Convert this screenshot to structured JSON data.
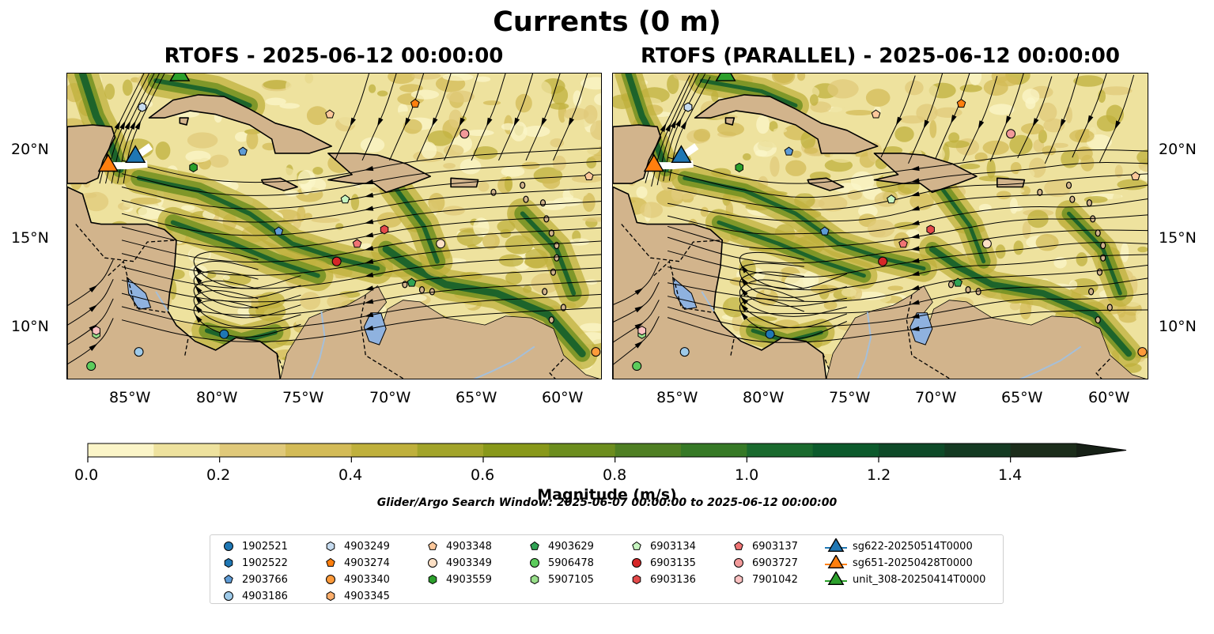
{
  "figure": {
    "title": "Currents (0 m)",
    "panels": [
      {
        "title": "RTOFS - 2025-06-12 00:00:00"
      },
      {
        "title": "RTOFS (PARALLEL) - 2025-06-12 00:00:00"
      }
    ],
    "lon_ticks": [
      "85°W",
      "80°W",
      "75°W",
      "70°W",
      "65°W",
      "60°W"
    ],
    "lat_ticks": [
      "20°N",
      "15°N",
      "10°N"
    ],
    "extent": {
      "lon": [
        -89.7,
        -58.3
      ],
      "lat": [
        7.1,
        24.4
      ]
    },
    "colorbar": {
      "label": "Magnitude (m/s)",
      "ticks": [
        "0.0",
        "0.2",
        "0.4",
        "0.6",
        "0.8",
        "1.0",
        "1.2",
        "1.4"
      ],
      "range": [
        0,
        1.5
      ],
      "extend": "max",
      "colors": [
        "#fbf5c8",
        "#eee29e",
        "#e0c97a",
        "#d3bb57",
        "#bfb03c",
        "#a2a42a",
        "#88981a",
        "#6c8d1e",
        "#4f7f23",
        "#367926",
        "#1a6a2e",
        "#0c5a2c",
        "#0e4a28",
        "#143a22",
        "#1c2d1b",
        "#162016"
      ]
    },
    "search_window": "Glider/Argo Search Window: 2025-06-07 00:00:00 to 2025-06-12 00:00:00",
    "colors": {
      "land": "#d2b48c",
      "lake": "#8fb2df",
      "river": "#a5bfd9",
      "streamline": "#000000"
    }
  },
  "legend": [
    {
      "label": "1902521",
      "marker": "circle",
      "color": "#1f77b4"
    },
    {
      "label": "1902522",
      "marker": "hexagon",
      "color": "#1f77b4"
    },
    {
      "label": "2903766",
      "marker": "pentagon",
      "color": "#5e9bd5"
    },
    {
      "label": "4903186",
      "marker": "circle",
      "color": "#9ecae9"
    },
    {
      "label": "4903249",
      "marker": "hexagon",
      "color": "#c6dbef"
    },
    {
      "label": "4903274",
      "marker": "pentagon",
      "color": "#ff7f0e"
    },
    {
      "label": "4903340",
      "marker": "circle",
      "color": "#fd9a3a"
    },
    {
      "label": "4903345",
      "marker": "hexagon",
      "color": "#fdae6b"
    },
    {
      "label": "4903348",
      "marker": "pentagon",
      "color": "#fdc89b"
    },
    {
      "label": "4903349",
      "marker": "circle",
      "color": "#fde0c5"
    },
    {
      "label": "4903559",
      "marker": "hexagon",
      "color": "#2ca02c"
    },
    {
      "label": "4903629",
      "marker": "pentagon",
      "color": "#31a354"
    },
    {
      "label": "5906478",
      "marker": "circle",
      "color": "#5ccc5c"
    },
    {
      "label": "5907105",
      "marker": "hexagon",
      "color": "#98df8a"
    },
    {
      "label": "6903134",
      "marker": "pentagon",
      "color": "#c7f5c0"
    },
    {
      "label": "6903135",
      "marker": "circle",
      "color": "#d62728"
    },
    {
      "label": "6903136",
      "marker": "hexagon",
      "color": "#e34a4a"
    },
    {
      "label": "6903137",
      "marker": "pentagon",
      "color": "#f07474"
    },
    {
      "label": "6903727",
      "marker": "circle",
      "color": "#f29a9a"
    },
    {
      "label": "7901042",
      "marker": "hexagon",
      "color": "#fbc1c1"
    },
    {
      "label": "sg622-20250514T0000",
      "marker": "triangle",
      "color": "#1f77b4"
    },
    {
      "label": "sg651-20250428T0000",
      "marker": "triangle",
      "color": "#ff7f0e"
    },
    {
      "label": "unit_308-20250414T0000",
      "marker": "triangle",
      "color": "#2ca02c"
    }
  ],
  "floats": [
    {
      "id": "1902521",
      "lon": -80.5,
      "lat": 9.7
    },
    {
      "id": "1902522",
      "lon": -85.3,
      "lat": 22.5
    },
    {
      "id": "2903766",
      "lon": -79.4,
      "lat": 20.0
    },
    {
      "id": "4903186",
      "lon": -85.5,
      "lat": 8.7
    },
    {
      "id": "4903249",
      "lon": -85.3,
      "lat": 22.5
    },
    {
      "id": "4903274",
      "lon": -69.3,
      "lat": 22.7
    },
    {
      "id": "4903340",
      "lon": -58.7,
      "lat": 8.7
    },
    {
      "id": "4903348",
      "lon": -74.3,
      "lat": 22.1
    },
    {
      "id": "4903349",
      "lon": -67.8,
      "lat": 14.8
    },
    {
      "id": "4903559",
      "lon": -82.3,
      "lat": 19.1
    },
    {
      "id": "4903629",
      "lon": -69.5,
      "lat": 12.6
    },
    {
      "id": "5906478",
      "lon": -88.3,
      "lat": 7.9
    },
    {
      "id": "5907105",
      "lon": -88.0,
      "lat": 9.7
    },
    {
      "id": "6903134",
      "lon": -73.4,
      "lat": 17.3
    },
    {
      "id": "6903135",
      "lon": -73.9,
      "lat": 13.8
    },
    {
      "id": "6903136",
      "lon": -71.1,
      "lat": 15.6
    },
    {
      "id": "6903137",
      "lon": -72.7,
      "lat": 14.8
    },
    {
      "id": "6903727",
      "lon": -66.4,
      "lat": 21.0
    },
    {
      "id": "7901042",
      "lon": -88.0,
      "lat": 9.9
    },
    {
      "id": "2903766b",
      "lon": -77.3,
      "lat": 15.5
    },
    {
      "id": "4903348b",
      "lon": -59.1,
      "lat": 18.6
    }
  ],
  "gliders": [
    {
      "id": "sg622-20250514T0000",
      "lon": -85.7,
      "lat": 19.7
    },
    {
      "id": "sg651-20250428T0000",
      "lon": -87.3,
      "lat": 19.2
    },
    {
      "id": "unit_308-20250414T0000",
      "lon": -83.1,
      "lat": 24.3
    }
  ]
}
